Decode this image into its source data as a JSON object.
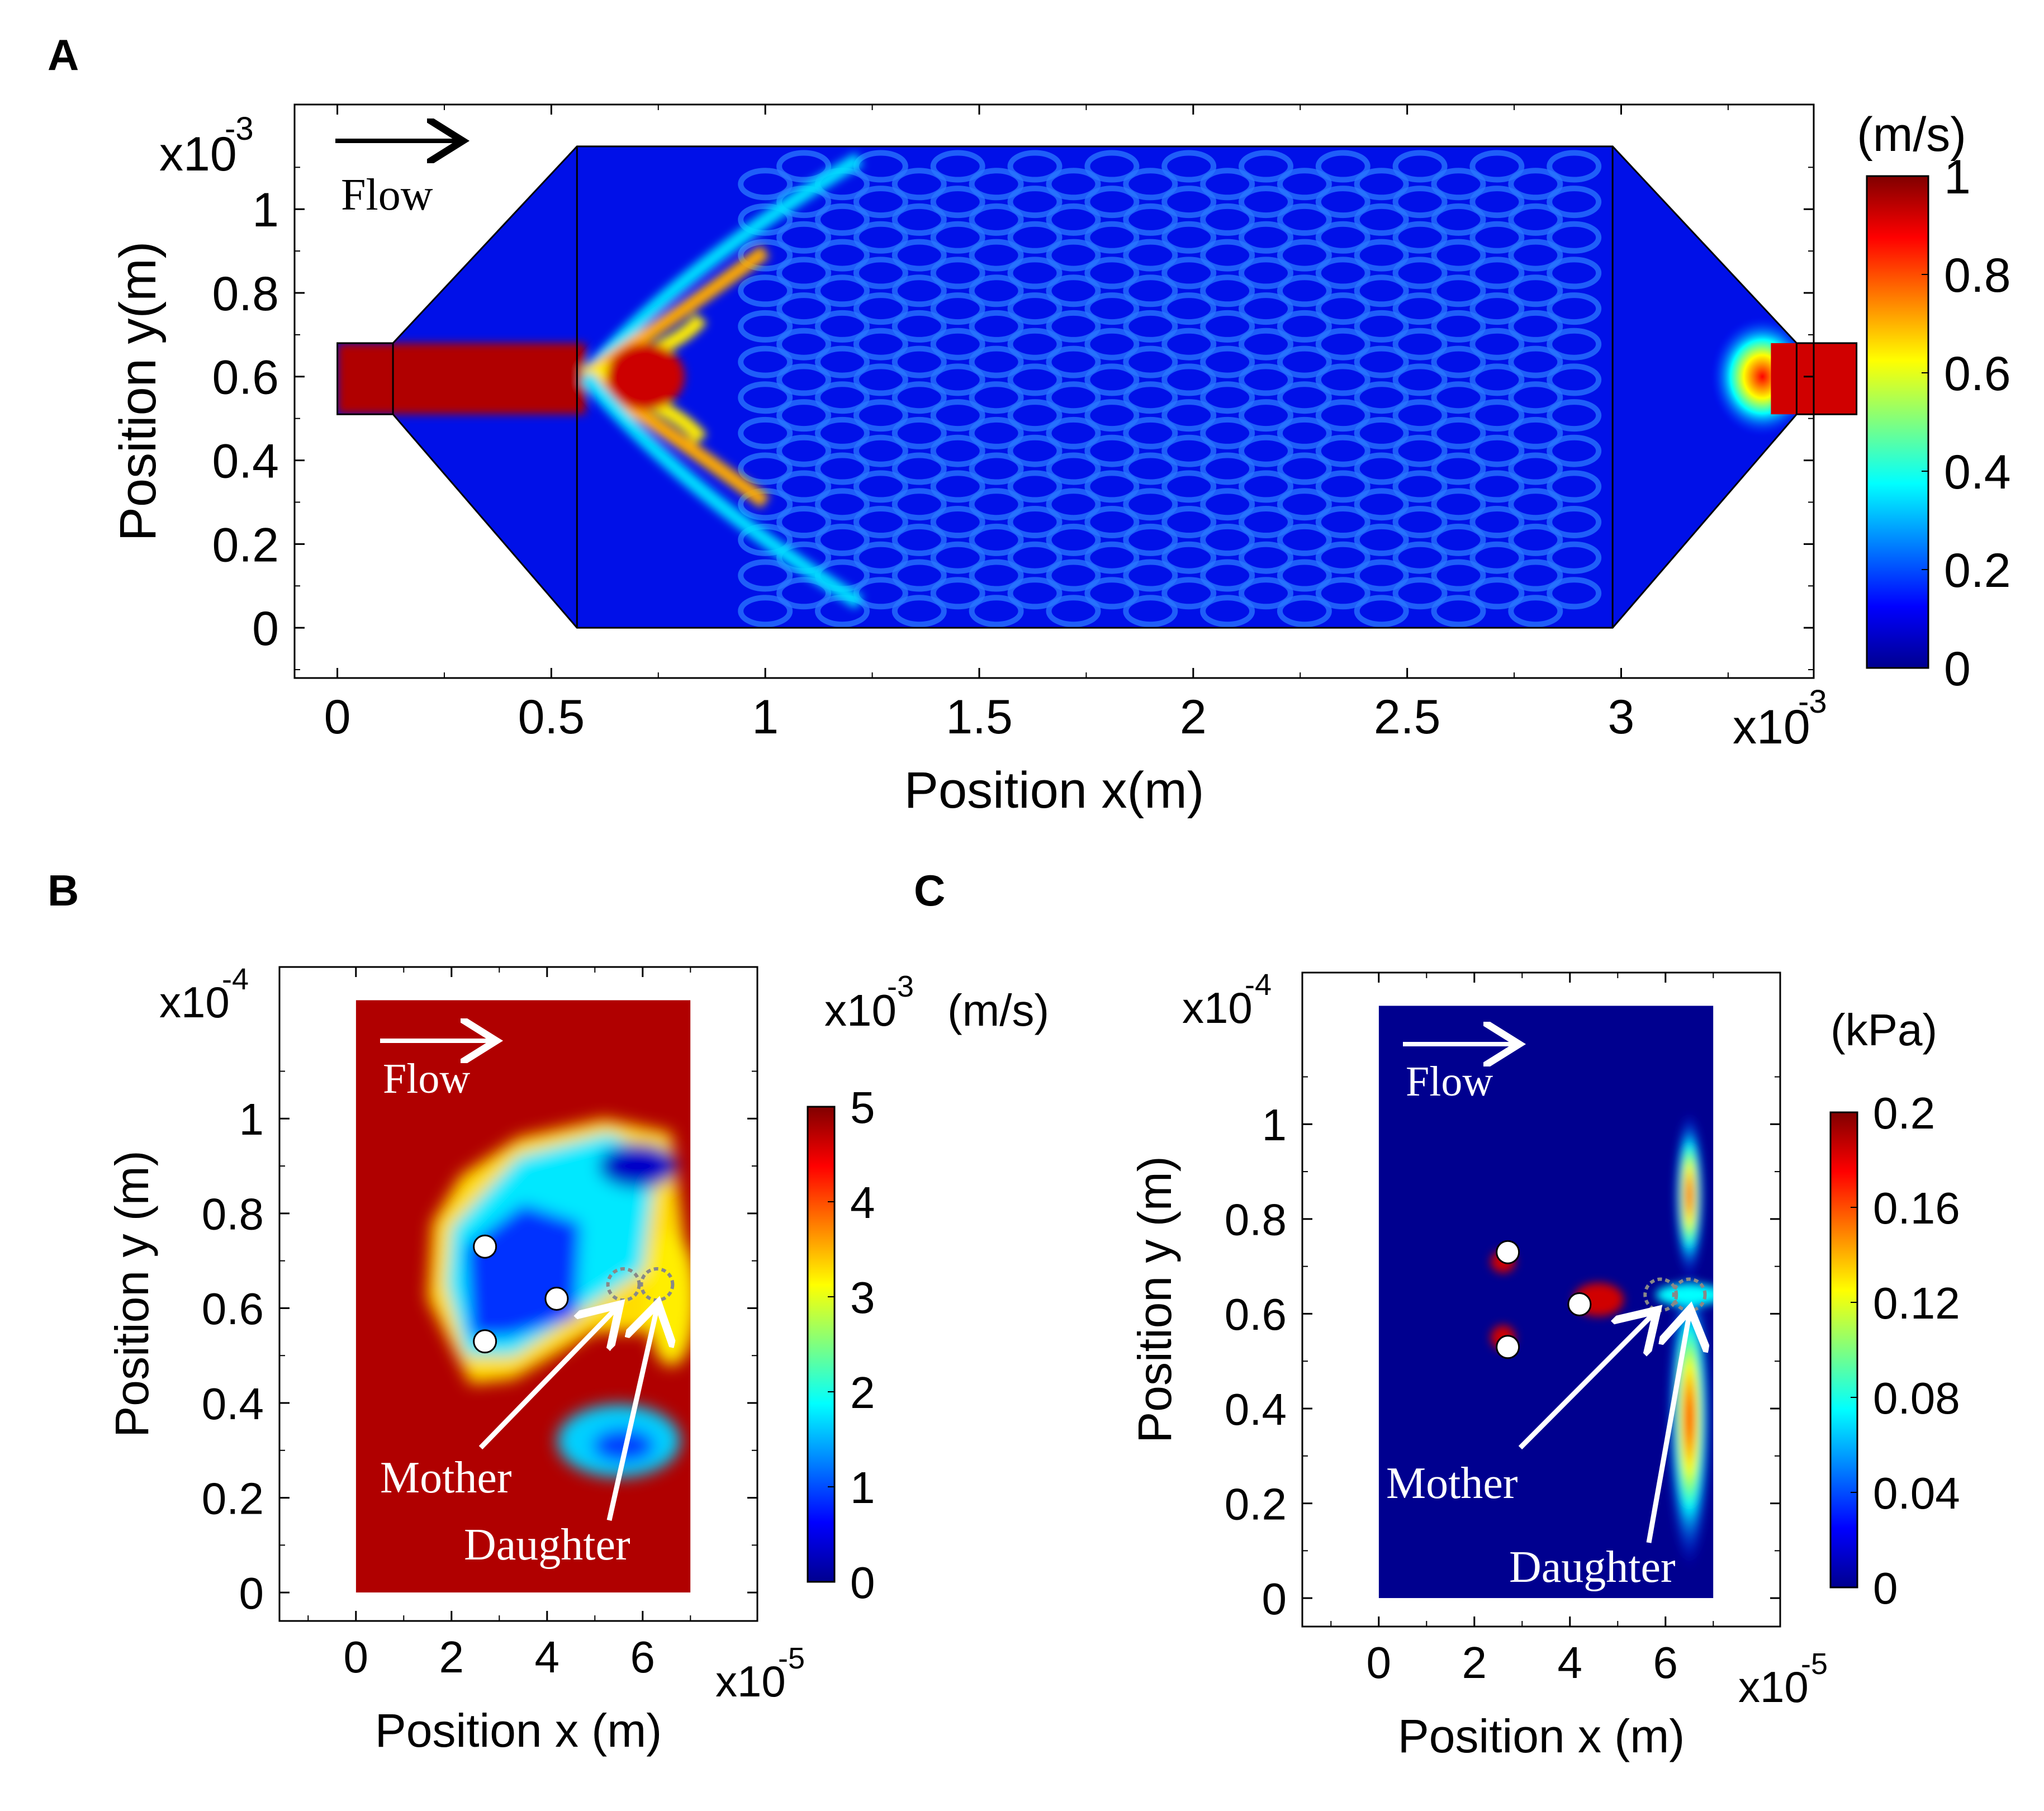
{
  "figure": {
    "panel_a_label": "A",
    "panel_b_label": "B",
    "panel_c_label": "C"
  },
  "chart_data": [
    {
      "type": "heatmap",
      "panel": "A",
      "quantity": "velocity magnitude",
      "xlabel": "Position x(m)",
      "ylabel": "Position y(m)",
      "x_scale_label": "x10",
      "x_scale_exp": "-3",
      "y_scale_label": "x10",
      "y_scale_exp": "-3",
      "xlim": [
        -0.1,
        3.45
      ],
      "ylim": [
        -0.12,
        1.25
      ],
      "xticks": [
        0,
        0.5,
        1,
        1.5,
        2,
        2.5,
        3
      ],
      "xtick_labels": [
        "0",
        "0.5",
        "1",
        "1.5",
        "2",
        "2.5",
        "3"
      ],
      "yticks": [
        0,
        0.2,
        0.4,
        0.6,
        0.8,
        1
      ],
      "ytick_labels": [
        "0",
        "0.2",
        "0.4",
        "0.6",
        "0.8",
        "1"
      ],
      "colorbar": {
        "unit_label": "(m/s)",
        "range": [
          0,
          1
        ],
        "ticks": [
          0,
          0.2,
          0.4,
          0.6,
          0.8,
          1
        ],
        "tick_labels": [
          "0",
          "0.2",
          "0.4",
          "0.6",
          "0.8",
          "1"
        ]
      },
      "annotations": [
        "Flow"
      ],
      "device_outline": [
        [
          0,
          0.51
        ],
        [
          0.13,
          0.51
        ],
        [
          0.56,
          0
        ],
        [
          2.98,
          0
        ],
        [
          3.41,
          0.51
        ],
        [
          3.55,
          0.51
        ],
        [
          3.55,
          0.68
        ],
        [
          3.41,
          0.68
        ],
        [
          2.98,
          1.15
        ],
        [
          0.56,
          1.15
        ],
        [
          0.13,
          0.68
        ],
        [
          0,
          0.68
        ]
      ],
      "pillar_array_x_range": [
        0.56,
        2.98
      ]
    },
    {
      "type": "heatmap",
      "panel": "B",
      "quantity": "velocity magnitude",
      "xlabel": "Position x (m)",
      "ylabel": "Position y (m)",
      "x_scale_label": "x10",
      "x_scale_exp": "-5",
      "y_scale_label": "x10",
      "y_scale_exp": "-4",
      "xlim": [
        -1.6,
        8.4
      ],
      "ylim": [
        -0.06,
        1.32
      ],
      "xticks": [
        0,
        2,
        4,
        6
      ],
      "xtick_labels": [
        "0",
        "2",
        "4",
        "6"
      ],
      "yticks": [
        0,
        0.2,
        0.4,
        0.6,
        0.8,
        1
      ],
      "ytick_labels": [
        "0",
        "0.2",
        "0.4",
        "0.6",
        "0.8",
        "1"
      ],
      "domain_x": [
        0,
        7
      ],
      "domain_y": [
        0,
        1.25
      ],
      "colorbar": {
        "unit_prefix": "x10",
        "unit_exp": "-3",
        "unit_label": "(m/s)",
        "range": [
          0,
          5
        ],
        "ticks": [
          0,
          1,
          2,
          3,
          4,
          5
        ],
        "tick_labels": [
          "0",
          "1",
          "2",
          "3",
          "4",
          "5"
        ]
      },
      "annotations": [
        "Flow",
        "Mother",
        "Daughter"
      ],
      "particles": [
        [
          2.7,
          0.73
        ],
        [
          4.2,
          0.62
        ],
        [
          2.7,
          0.53
        ]
      ],
      "mother_cell": [
        5.6,
        0.65
      ],
      "daughter_cell": [
        6.3,
        0.65
      ]
    },
    {
      "type": "heatmap",
      "panel": "C",
      "quantity": "pressure",
      "xlabel": "Position x (m)",
      "ylabel": "Position y (m)",
      "x_scale_label": "x10",
      "x_scale_exp": "-5",
      "y_scale_label": "x10",
      "y_scale_exp": "-4",
      "xlim": [
        -1.6,
        8.4
      ],
      "ylim": [
        -0.06,
        1.32
      ],
      "xticks": [
        0,
        2,
        4,
        6
      ],
      "xtick_labels": [
        "0",
        "2",
        "4",
        "6"
      ],
      "yticks": [
        0,
        0.2,
        0.4,
        0.6,
        0.8,
        1
      ],
      "ytick_labels": [
        "0",
        "0.2",
        "0.4",
        "0.6",
        "0.8",
        "1"
      ],
      "domain_x": [
        0,
        7
      ],
      "domain_y": [
        0,
        1.25
      ],
      "colorbar": {
        "unit_label": "(kPa)",
        "range": [
          0,
          0.2
        ],
        "ticks": [
          0,
          0.04,
          0.08,
          0.12,
          0.16,
          0.2
        ],
        "tick_labels": [
          "0",
          "0.04",
          "0.08",
          "0.12",
          "0.16",
          "0.2"
        ]
      },
      "annotations": [
        "Flow",
        "Mother",
        "Daughter"
      ],
      "particles": [
        [
          2.7,
          0.73
        ],
        [
          4.2,
          0.62
        ],
        [
          2.7,
          0.53
        ]
      ],
      "mother_cell": [
        5.9,
        0.64
      ],
      "daughter_cell": [
        6.5,
        0.64
      ]
    }
  ]
}
